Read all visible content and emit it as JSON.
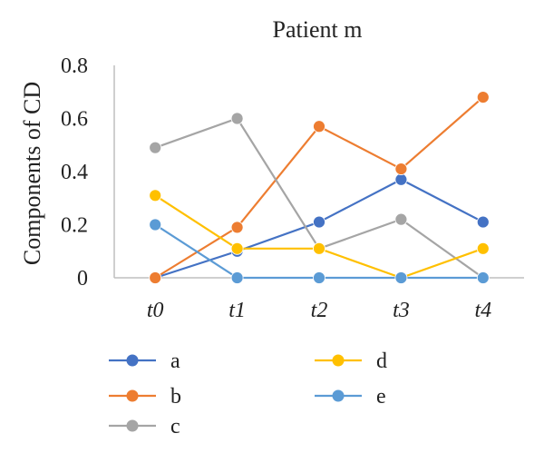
{
  "chart_data": {
    "type": "line",
    "title": "Patient m",
    "ylabel": "Components of CD",
    "xlabel": "",
    "x": [
      "t0",
      "t1",
      "t2",
      "t3",
      "t4"
    ],
    "ylim": [
      0,
      0.8
    ],
    "yticks": [
      0,
      0.2,
      0.4,
      0.6,
      0.8
    ],
    "ytick_labels": [
      "0",
      "0.2",
      "0.4",
      "0.6",
      "0.8"
    ],
    "grid": false,
    "legend": "bottom",
    "series": [
      {
        "name": "a",
        "color": "#4472c4",
        "values": [
          0,
          0.1,
          0.21,
          0.37,
          0.21
        ]
      },
      {
        "name": "b",
        "color": "#ed7d31",
        "values": [
          0,
          0.19,
          0.57,
          0.41,
          0.68
        ]
      },
      {
        "name": "c",
        "color": "#a5a5a5",
        "values": [
          0.49,
          0.6,
          0.11,
          0.22,
          0
        ]
      },
      {
        "name": "d",
        "color": "#ffc000",
        "values": [
          0.31,
          0.11,
          0.11,
          0,
          0.11
        ]
      },
      {
        "name": "e",
        "color": "#5b9bd5",
        "values": [
          0.2,
          0,
          0,
          0,
          0
        ]
      }
    ]
  }
}
